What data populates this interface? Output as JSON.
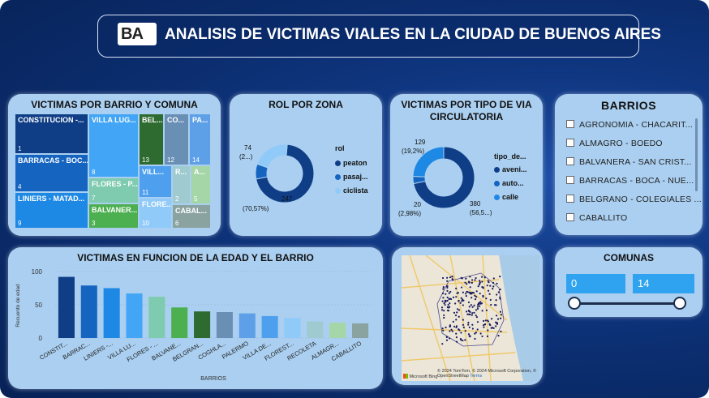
{
  "header": {
    "logo_text": "BA",
    "title": "ANALISIS DE VICTIMAS VIALES EN LA CIUDAD DE BUENOS AIRES"
  },
  "treemap": {
    "title": "VICTIMAS POR BARRIO Y COMUNA",
    "tiles": [
      {
        "label": "CONSTITUCION -...",
        "comuna": "1",
        "color": "#0f3e86"
      },
      {
        "label": "BARRACAS - BOC...",
        "comuna": "4",
        "color": "#1565c0"
      },
      {
        "label": "LINIERS - MATAD...",
        "comuna": "9",
        "color": "#1e88e5"
      },
      {
        "label": "VILLA LUG...",
        "comuna": "8",
        "color": "#42a5f5"
      },
      {
        "label": "FLORES - P...",
        "comuna": "7",
        "color": "#7ecbb0"
      },
      {
        "label": "BALVANER...",
        "comuna": "3",
        "color": "#4caf50"
      },
      {
        "label": "BEL...",
        "comuna": "13",
        "color": "#2e6b30"
      },
      {
        "label": "CO...",
        "comuna": "12",
        "color": "#6a8fb5"
      },
      {
        "label": "PA...",
        "comuna": "14",
        "color": "#5ea0e8"
      },
      {
        "label": "VILL...",
        "comuna": "11",
        "color": "#4ea0ee"
      },
      {
        "label": "R...",
        "comuna": "2",
        "color": "#9fcbd0"
      },
      {
        "label": "A...",
        "comuna": "5",
        "color": "#a5d6a7"
      },
      {
        "label": "FLORE...",
        "comuna": "10",
        "color": "#90caf9"
      },
      {
        "label": "CABAL...",
        "comuna": "6",
        "color": "#8aa2a0"
      }
    ]
  },
  "rol": {
    "title": "ROL POR ZONA",
    "legend_title": "rol",
    "legend": [
      {
        "name": "peaton",
        "color": "#0f3e86"
      },
      {
        "name": "pasaj...",
        "color": "#1565c0"
      },
      {
        "name": "ciclista",
        "color": "#90caf9"
      }
    ],
    "label_small": "74",
    "label_small_sub": "(2...)",
    "label_big": "247",
    "label_big_sub": "(70,57%)"
  },
  "tipo_via": {
    "title_line1": "VICTIMAS POR TIPO DE VIA",
    "title_line2": "CIRCULATORIA",
    "legend_title": "tipo_de...",
    "legend": [
      {
        "name": "aveni...",
        "color": "#0f3e86"
      },
      {
        "name": "auto...",
        "color": "#1565c0"
      },
      {
        "name": "calle",
        "color": "#1e88e5"
      }
    ],
    "label_a": "129",
    "label_a_sub": "(19,2%)",
    "label_b": "20",
    "label_b_sub": "(2,98%)",
    "label_c": "380",
    "label_c_sub": "(56,5...)"
  },
  "barrios_slicer": {
    "title": "BARRIOS",
    "items": [
      "AGRONOMIA - CHACARIT...",
      "ALMAGRO - BOEDO",
      "BALVANERA - SAN CRIST...",
      "BARRACAS - BOCA - NUE...",
      "BELGRANO - COLEGIALES ...",
      "CABALLITO"
    ]
  },
  "comunas_slicer": {
    "title": "COMUNAS",
    "min_value": "0",
    "max_value": "14"
  },
  "bar_chart": {
    "title": "VICTIMAS EN FUNCION DE LA EDAD Y EL BARRIO",
    "xlabel": "BARRIOS",
    "ylabel": "Recuento de edad"
  },
  "map": {
    "attribution": "© 2024 TomTom, © 2024 Microsoft Corporation, © OpenStreetMap",
    "terms": "Terms",
    "brand": "Microsoft Bing"
  },
  "chart_data": [
    {
      "type": "bar",
      "title": "VICTIMAS EN FUNCION DE LA EDAD Y EL BARRIO",
      "xlabel": "BARRIOS",
      "ylabel": "Recuento de edad",
      "ylim": [
        0,
        100
      ],
      "yticks": [
        "0",
        "50",
        "100"
      ],
      "categories": [
        "CONSTIT...",
        "BARRAC...",
        "LINIERS -...",
        "VILLA LU...",
        "FLORES - ...",
        "BALVANE...",
        "BELGRAN...",
        "COGHLA...",
        "PALERMO",
        "VILLA DE...",
        "FLOREST...",
        "RECOLETA",
        "ALMAGR...",
        "CABALLITO"
      ],
      "values": [
        92,
        79,
        75,
        67,
        62,
        46,
        40,
        39,
        37,
        33,
        30,
        25,
        23,
        22
      ],
      "colors": [
        "#0f3e86",
        "#1565c0",
        "#1e88e5",
        "#42a5f5",
        "#7ecbb0",
        "#4caf50",
        "#2e6b30",
        "#6a8fb5",
        "#5ea0e8",
        "#4ea0ee",
        "#90caf9",
        "#9fcbd0",
        "#a5d6a7",
        "#8aa2a0"
      ]
    },
    {
      "type": "pie",
      "title": "ROL POR ZONA",
      "categories": [
        "peaton",
        "pasaj...",
        "ciclista"
      ],
      "values": [
        247,
        29,
        74
      ],
      "colors": [
        "#0f3e86",
        "#1565c0",
        "#90caf9"
      ]
    },
    {
      "type": "pie",
      "title": "VICTIMAS POR TIPO DE VIA CIRCULATORIA",
      "categories": [
        "aveni...",
        "auto...",
        "calle"
      ],
      "values": [
        380,
        20,
        129
      ],
      "colors": [
        "#0f3e86",
        "#1565c0",
        "#1e88e5"
      ]
    }
  ]
}
